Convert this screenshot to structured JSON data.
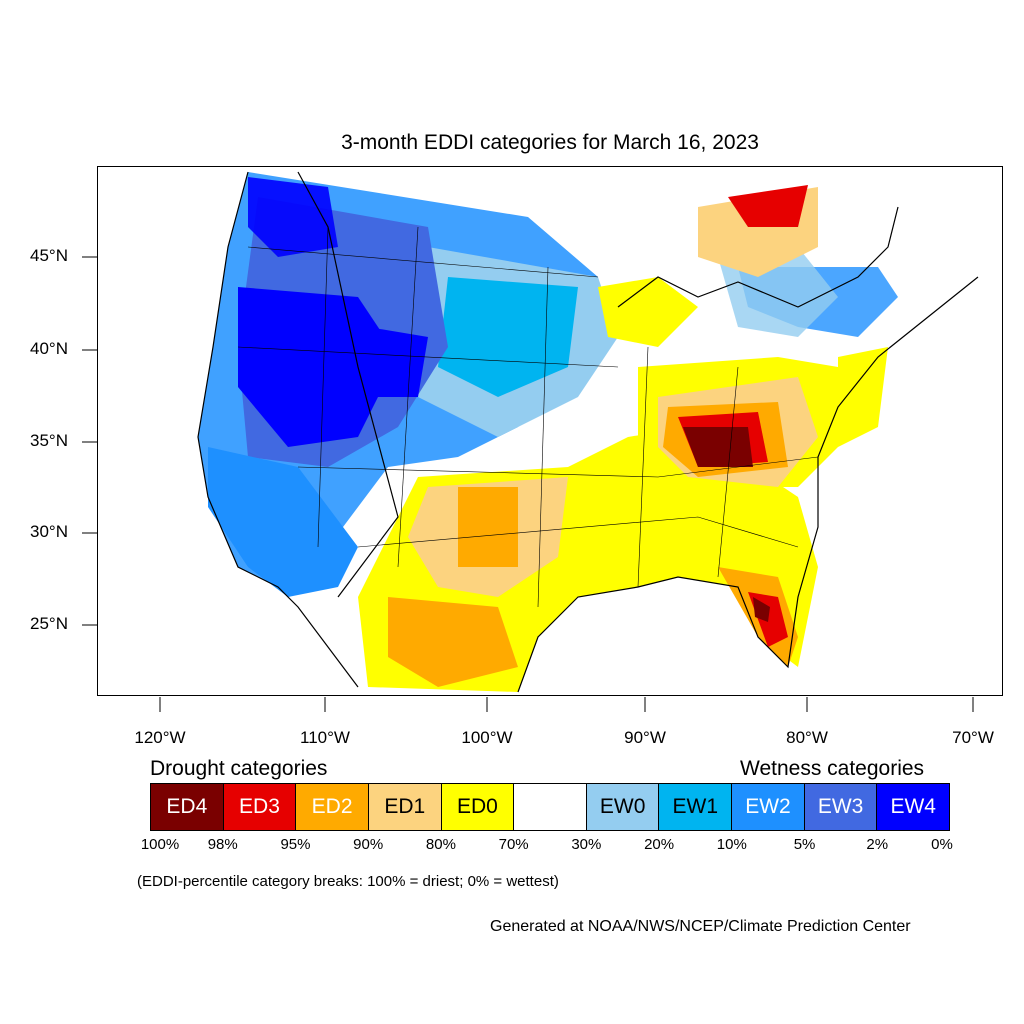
{
  "title": "3-month EDDI categories for March 16, 2023",
  "lat_labels": [
    "45°N",
    "40°N",
    "35°N",
    "30°N",
    "25°N"
  ],
  "lon_labels": [
    "120°W",
    "110°W",
    "100°W",
    "90°W",
    "80°W",
    "70°W"
  ],
  "drought_heading": "Drought categories",
  "wetness_heading": "Wetness categories",
  "categories": [
    {
      "label": "ED4",
      "color": "#7a0000",
      "text_color": "#ffffff"
    },
    {
      "label": "ED3",
      "color": "#e60000",
      "text_color": "#ffffff"
    },
    {
      "label": "ED2",
      "color": "#ffaa00",
      "text_color": "#ffffff"
    },
    {
      "label": "ED1",
      "color": "#fcd37f",
      "text_color": "#000000"
    },
    {
      "label": "ED0",
      "color": "#ffff00",
      "text_color": "#000000"
    },
    {
      "label": "",
      "color": "#ffffff",
      "text_color": "#000000"
    },
    {
      "label": "EW0",
      "color": "#94cdf0",
      "text_color": "#000000"
    },
    {
      "label": "EW1",
      "color": "#00b4f0",
      "text_color": "#000000"
    },
    {
      "label": "EW2",
      "color": "#1e90ff",
      "text_color": "#ffffff"
    },
    {
      "label": "EW3",
      "color": "#4169e1",
      "text_color": "#ffffff"
    },
    {
      "label": "EW4",
      "color": "#0000ff",
      "text_color": "#ffffff"
    }
  ],
  "percentiles": [
    "100%",
    "98%",
    "95%",
    "90%",
    "80%",
    "70%",
    "30%",
    "20%",
    "10%",
    "5%",
    "2%",
    "0%"
  ],
  "note": "(EDDI-percentile category breaks: 100% = driest; 0% = wettest)",
  "credit": "Generated at NOAA/NWS/NCEP/Climate Prediction Center"
}
